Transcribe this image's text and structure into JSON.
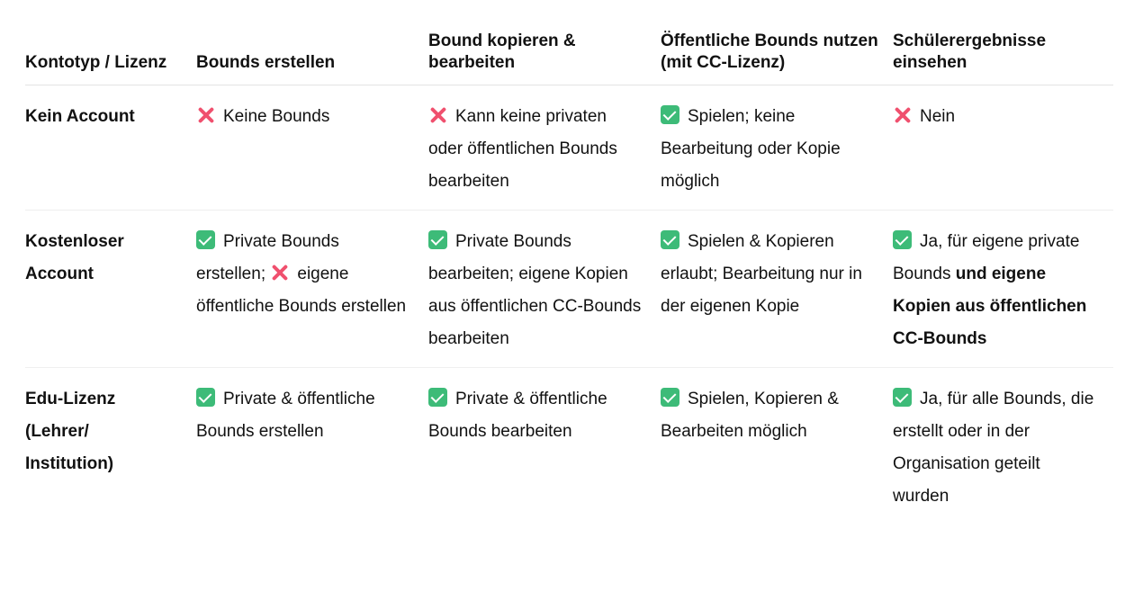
{
  "colors": {
    "check": "#3dbb78",
    "cross": "#f0506e"
  },
  "headers": [
    "Kontotyp / Lizenz",
    "Bounds erstellen",
    "Bound kopieren & bearbeiten",
    "Öffentliche Bounds nutzen (mit CC-Lizenz)",
    "Schülerergebnisse einsehen"
  ],
  "rows": [
    {
      "label": "Kein Account",
      "cells": [
        [
          {
            "icon": "cross"
          },
          {
            "text": "Keine Bounds"
          }
        ],
        [
          {
            "icon": "cross"
          },
          {
            "text": "Kann keine privaten oder öffentlichen Bounds bearbeiten"
          }
        ],
        [
          {
            "icon": "check"
          },
          {
            "text": "Spielen; keine Bearbeitung oder Kopie möglich"
          }
        ],
        [
          {
            "icon": "cross"
          },
          {
            "text": "Nein"
          }
        ]
      ]
    },
    {
      "label": "Kostenloser Account",
      "cells": [
        [
          {
            "icon": "check"
          },
          {
            "text": "Private Bounds erstellen; "
          },
          {
            "icon": "cross"
          },
          {
            "text": "eigene öffentliche Bounds erstellen"
          }
        ],
        [
          {
            "icon": "check"
          },
          {
            "text": "Private Bounds bearbeiten; eigene Kopien aus öffentlichen CC-Bounds bearbeiten"
          }
        ],
        [
          {
            "icon": "check"
          },
          {
            "text": "Spielen & Kopieren erlaubt; Bearbeitung nur in der eigenen Kopie"
          }
        ],
        [
          {
            "icon": "check"
          },
          {
            "text": "Ja, für eigene private Bounds "
          },
          {
            "bold": "und eigene Kopien aus öffentlichen CC-Bounds"
          }
        ]
      ]
    },
    {
      "label": "Edu-Lizenz (Lehrer/ Institution)",
      "cells": [
        [
          {
            "icon": "check"
          },
          {
            "text": "Private & öffentliche Bounds erstellen"
          }
        ],
        [
          {
            "icon": "check"
          },
          {
            "text": "Private & öffentliche Bounds bearbeiten"
          }
        ],
        [
          {
            "icon": "check"
          },
          {
            "text": "Spielen, Kopieren & Bearbeiten möglich"
          }
        ],
        [
          {
            "icon": "check"
          },
          {
            "text": "Ja, für alle Bounds, die erstellt oder in der Organisation geteilt wurden"
          }
        ]
      ]
    }
  ]
}
